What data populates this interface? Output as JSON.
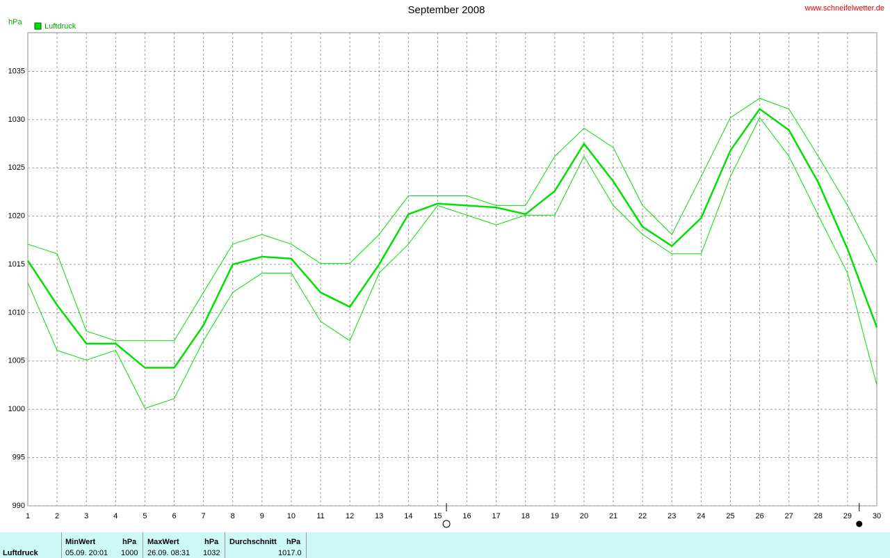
{
  "chart_data": {
    "type": "line",
    "title": "September 2008",
    "ylabel": "hPa",
    "source": "www.schneifelwetter.de",
    "x": [
      1,
      2,
      3,
      4,
      5,
      6,
      7,
      8,
      9,
      10,
      11,
      12,
      13,
      14,
      15,
      16,
      17,
      18,
      19,
      20,
      21,
      22,
      23,
      24,
      25,
      26,
      27,
      28,
      29,
      30
    ],
    "series": [
      {
        "name": "Luftdruck",
        "color": "#00e000",
        "values": [
          1015.4,
          1010.8,
          1006.8,
          1006.8,
          1004.3,
          1004.3,
          1008.7,
          1015.0,
          1015.8,
          1015.6,
          1012.1,
          1010.6,
          1015.0,
          1020.2,
          1021.3,
          1021.1,
          1020.9,
          1020.2,
          1022.6,
          1027.5,
          1023.6,
          1018.9,
          1016.9,
          1019.8,
          1026.8,
          1031.1,
          1028.9,
          1023.5,
          1016.6,
          1008.5
        ],
        "max": [
          1017.1,
          1016.1,
          1008.1,
          1007.1,
          1007.1,
          1007.1,
          1012.1,
          1017.1,
          1018.1,
          1017.1,
          1015.1,
          1015.1,
          1018.1,
          1022.1,
          1022.1,
          1022.1,
          1021.1,
          1021.1,
          1026.2,
          1029.1,
          1027.1,
          1021.1,
          1018.1,
          1024.1,
          1030.2,
          1032.2,
          1031.1,
          1026.2,
          1021.1,
          1015.2
        ],
        "min": [
          1013.1,
          1006.1,
          1005.1,
          1006.1,
          1000.1,
          1001.1,
          1007.1,
          1012.1,
          1014.1,
          1014.1,
          1009.1,
          1007.1,
          1014.1,
          1017.1,
          1021.1,
          1020.1,
          1019.1,
          1020.1,
          1020.1,
          1026.2,
          1021.1,
          1018.1,
          1016.1,
          1016.1,
          1024.1,
          1030.2,
          1026.2,
          1020.1,
          1014.1,
          1002.5
        ]
      }
    ],
    "xlim": [
      1,
      30
    ],
    "xticks": [
      1,
      2,
      3,
      4,
      5,
      6,
      7,
      8,
      9,
      10,
      11,
      12,
      13,
      14,
      15,
      16,
      17,
      18,
      19,
      20,
      21,
      22,
      23,
      24,
      25,
      26,
      27,
      28,
      29,
      30
    ],
    "ylim": [
      990,
      1039
    ],
    "yticks": [
      990,
      995,
      1000,
      1005,
      1010,
      1015,
      1020,
      1025,
      1030,
      1035
    ],
    "grid": true,
    "moon": [
      {
        "x": 15.3,
        "filled": false
      },
      {
        "x": 29.4,
        "filled": true
      }
    ]
  },
  "summary": {
    "label": "Luftdruck",
    "min": {
      "header": "MinWert",
      "unit": "hPa",
      "time": "05.09.  20:01",
      "value": "1000"
    },
    "max": {
      "header": "MaxWert",
      "unit": "hPa",
      "time": "26.09.  08:31",
      "value": "1032"
    },
    "avg": {
      "header": "Durchschnitt",
      "unit": "hPa",
      "value": "1017.0"
    }
  }
}
